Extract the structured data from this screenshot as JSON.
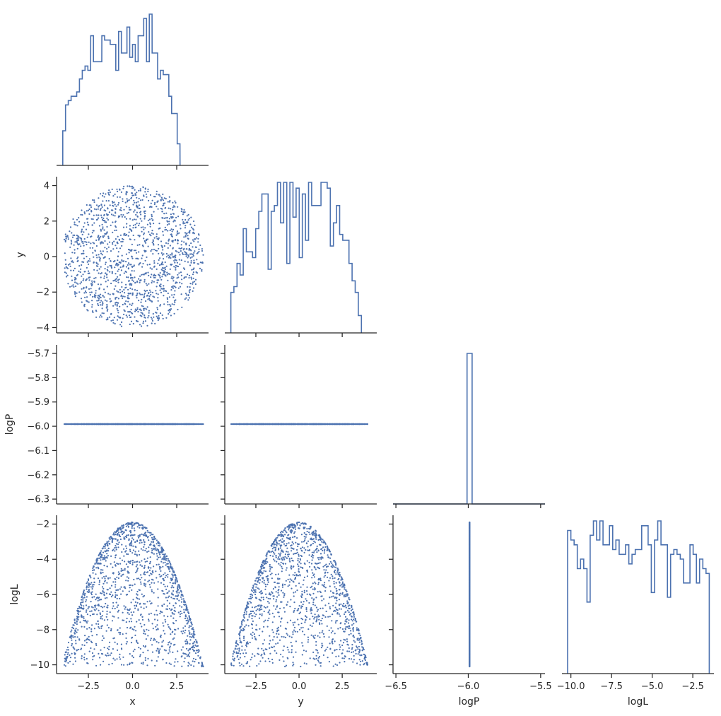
{
  "colors": {
    "series": "#4c72b0",
    "axis": "#262626",
    "background": "#ffffff"
  },
  "chart_data": {
    "type": "pairplot",
    "variables": [
      "x",
      "y",
      "logP",
      "logL"
    ],
    "corner": true,
    "diagonal": "step histogram",
    "offdiagonal": "scatter",
    "axes": {
      "x": {
        "label": "x",
        "range": [
          -4.3,
          4.3
        ],
        "ticks": [
          -2.5,
          0.0,
          2.5
        ],
        "tick_labels": [
          "−2.5",
          "0.0",
          "2.5"
        ]
      },
      "y": {
        "label": "y",
        "range": [
          -4.3,
          4.5
        ],
        "ticks": [
          -4,
          -2,
          0,
          2,
          4
        ],
        "tick_labels": [
          "−4",
          "−2",
          "0",
          "2",
          "4"
        ],
        "x_ticks": [
          -2.5,
          0.0,
          2.5
        ],
        "x_tick_labels": [
          "−2.5",
          "0.0",
          "2.5"
        ]
      },
      "logP": {
        "label": "logP",
        "range": [
          -6.32,
          -5.665
        ],
        "ticks": [
          -6.3,
          -6.2,
          -6.1,
          -6.0,
          -5.9,
          -5.8,
          -5.7
        ],
        "tick_labels": [
          "−6.3",
          "−6.2",
          "−6.1",
          "−6.0",
          "−5.9",
          "−5.8",
          "−5.7"
        ],
        "x_range": [
          -6.52,
          -5.47
        ],
        "x_ticks": [
          -6.5,
          -6.0,
          -5.5
        ],
        "x_tick_labels": [
          "−6.5",
          "−6.0",
          "−5.5"
        ],
        "constant_value": -5.991
      },
      "logL": {
        "label": "logL",
        "range": [
          -10.5,
          -1.5
        ],
        "ticks": [
          -10,
          -8,
          -6,
          -4,
          -2
        ],
        "tick_labels": [
          "−10",
          "−8",
          "−6",
          "−4",
          "−2"
        ],
        "x_range": [
          -10.55,
          -1.2
        ],
        "x_ticks": [
          -10.0,
          -7.5,
          -5.0,
          -2.5
        ],
        "x_tick_labels": [
          "−10.0",
          "−7.5",
          "−5.0",
          "−2.5"
        ]
      }
    },
    "samples": {
      "count": 1500,
      "distribution": "uniform in disc of radius 4",
      "logL_relation": "logL = -0.5 * (x^2 + y^2) / 2 - 1.9 approx, ranging -10.1 to -1.9"
    },
    "histograms": {
      "x": {
        "edges_start": -3.95,
        "bin_width": 0.158,
        "counts": [
          8,
          14,
          15,
          16,
          16,
          17,
          20,
          22,
          23,
          22,
          30,
          24,
          24,
          24,
          30,
          29,
          29,
          28,
          28,
          22,
          31,
          26,
          26,
          32,
          25,
          28,
          24,
          30,
          30,
          34,
          24,
          35,
          26,
          26,
          20,
          22,
          21,
          21,
          16,
          12,
          12,
          5
        ]
      },
      "y": {
        "edges_start": -3.95,
        "bin_width": 0.18,
        "counts": [
          7,
          8,
          12,
          10,
          18,
          14,
          14,
          13,
          18,
          21,
          24,
          24,
          11,
          21,
          22,
          26,
          19,
          26,
          12,
          26,
          20,
          25,
          13,
          24,
          16,
          26,
          22,
          22,
          22,
          26,
          26,
          25,
          15,
          19,
          22,
          17,
          16,
          16,
          12,
          9,
          7,
          3
        ]
      },
      "logP": {
        "bar_x": -5.991,
        "bar_width": 0.035,
        "height_fraction": 1.0
      },
      "logL": {
        "edges_start": -10.2,
        "bin_width": 0.198,
        "counts": [
          30,
          28,
          27,
          22,
          24,
          22,
          15,
          29,
          32,
          28,
          32,
          27,
          27,
          31,
          26,
          28,
          25,
          25,
          27,
          23,
          25,
          26,
          26,
          31,
          31,
          27,
          17,
          28,
          32,
          27,
          27,
          16,
          25,
          26,
          25,
          24,
          19,
          19,
          27,
          25,
          19,
          24,
          22,
          21
        ]
      }
    }
  }
}
